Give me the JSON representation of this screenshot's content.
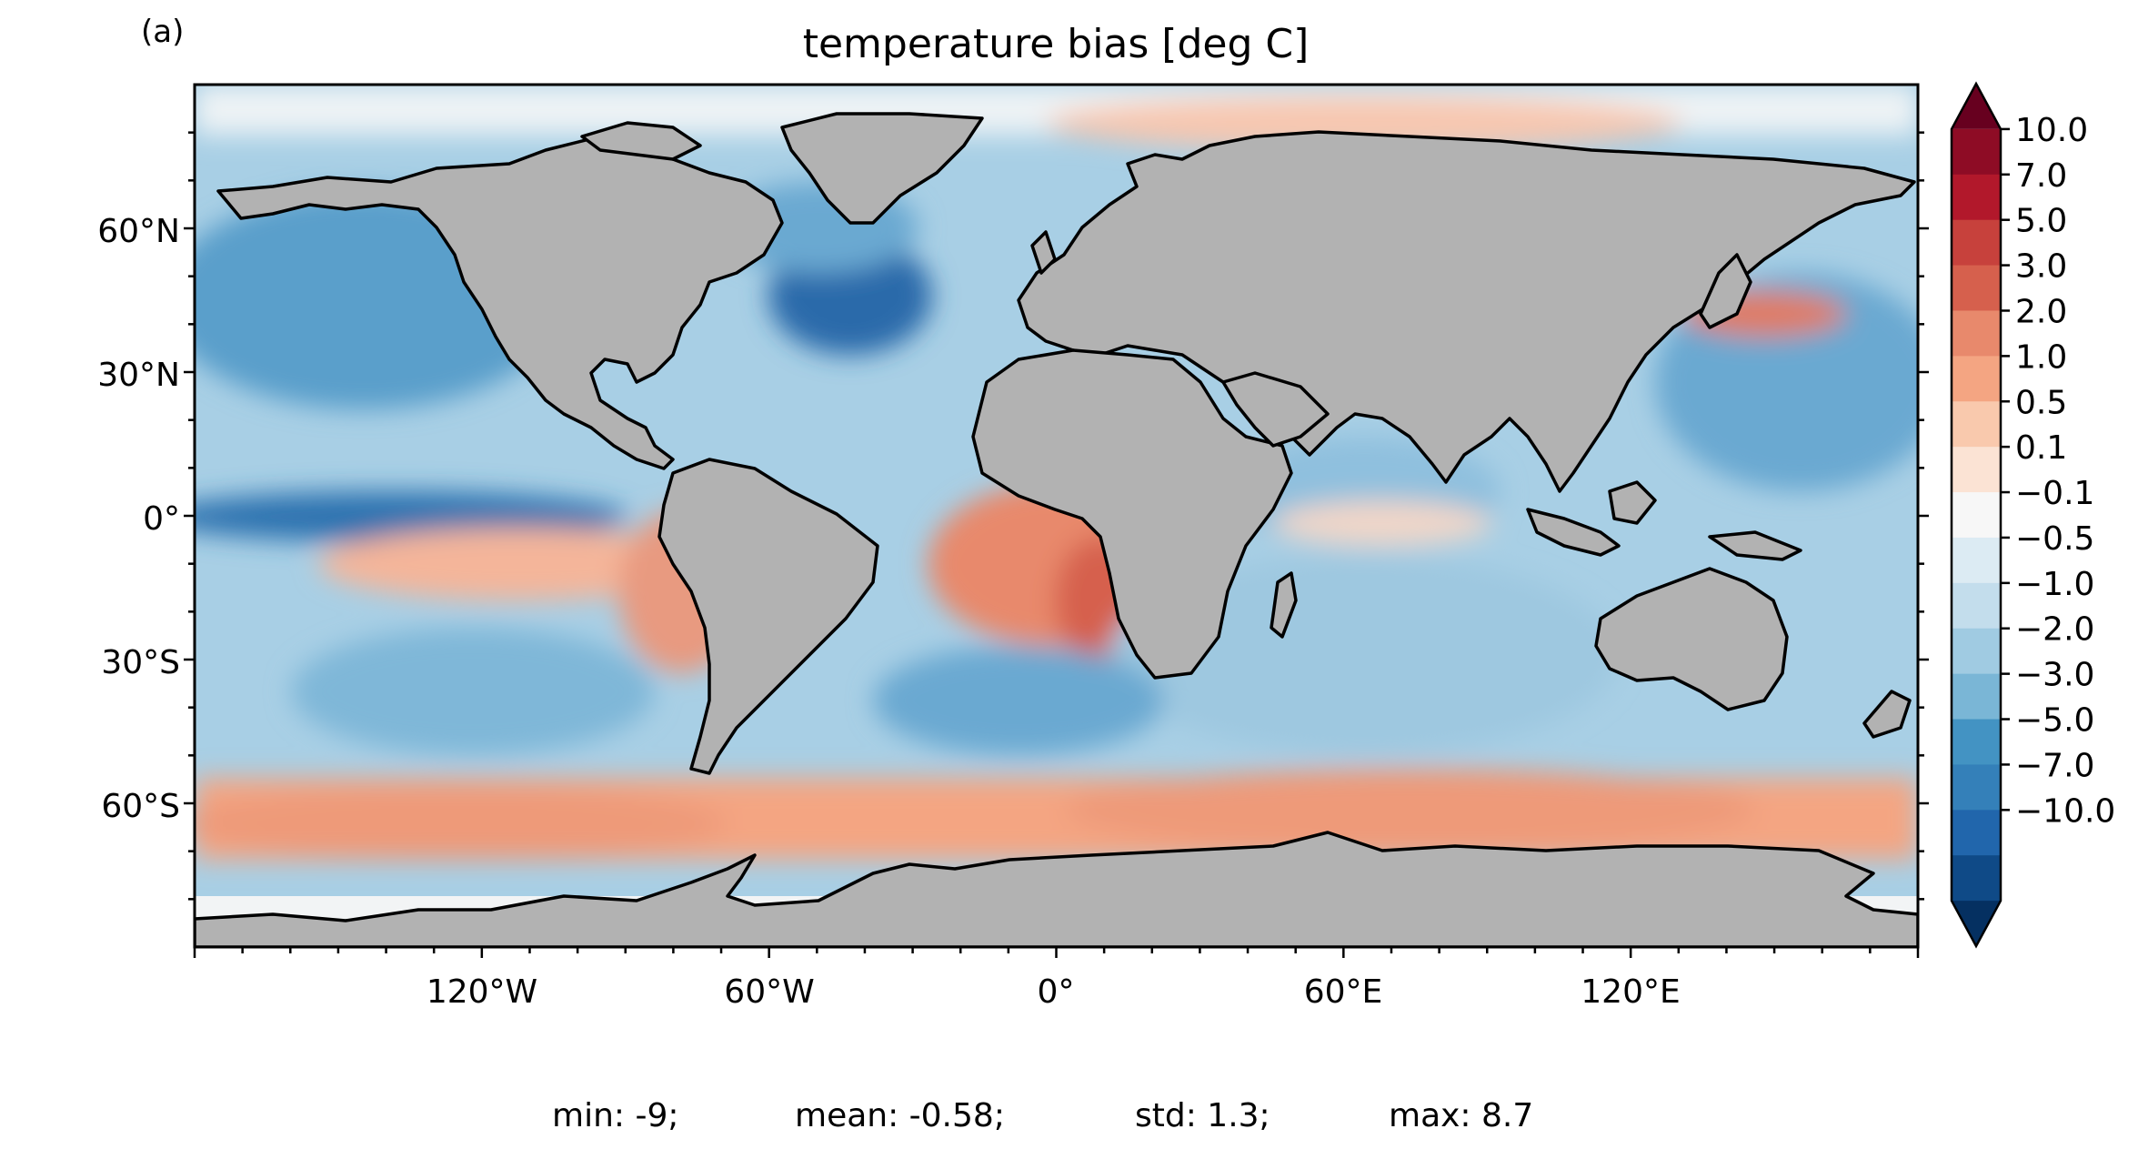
{
  "panel_label": "(a)",
  "title": "temperature bias [deg C]",
  "lon_ticks": [
    "120°W",
    "60°W",
    "0°",
    "60°E",
    "120°E"
  ],
  "lat_ticks": [
    "60°N",
    "30°N",
    "0°",
    "30°S",
    "60°S"
  ],
  "colorbar": {
    "extend": "both",
    "labels": [
      "10.0",
      "7.0",
      "5.0",
      "3.0",
      "2.0",
      "1.0",
      "0.5",
      "0.1",
      "−0.1",
      "−0.5",
      "−1.0",
      "−2.0",
      "−3.0",
      "−5.0",
      "−7.0",
      "−10.0"
    ],
    "colors": [
      "#67001f",
      "#8e0c25",
      "#b2182b",
      "#c7413c",
      "#d6604d",
      "#e8896c",
      "#f4a582",
      "#f9c9ad",
      "#fbe3d4",
      "#f7f7f7",
      "#dcebf3",
      "#c3ddec",
      "#a0cbe2",
      "#7ab6d6",
      "#4393c3",
      "#3480b9",
      "#2166ac",
      "#0f4a87",
      "#053061"
    ]
  },
  "map_colors": {
    "land": "#b2b2b2",
    "ocean_base": "#a8cfe5",
    "coastline": "#000000"
  },
  "stats": {
    "min": "min: -9;",
    "mean": "mean: -0.58;",
    "std": "std: 1.3;",
    "max": "max: 8.7"
  }
}
